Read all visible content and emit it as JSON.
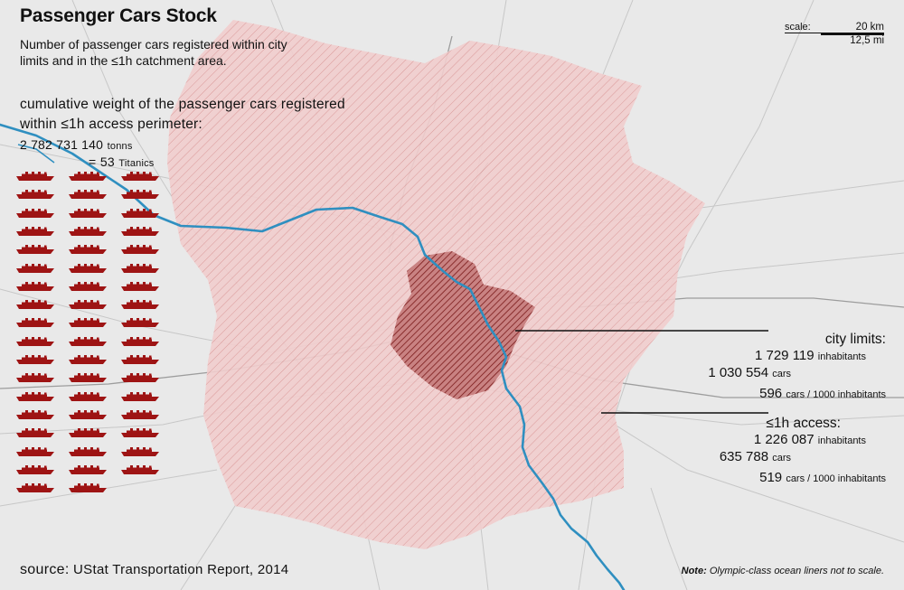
{
  "title": "Passenger Cars Stock",
  "subtitle": "Number of passenger cars registered within city limits and in the ≤1h catchment area.",
  "cumulative": {
    "heading": "cumulative weight of the passenger cars registered within ≤1h access perimeter:",
    "tons_value": "2 782 731 140",
    "tons_unit": "tonns",
    "equals": "=",
    "titanics_value": "53",
    "titanics_unit": "Titanics",
    "ship_count": 53
  },
  "scale": {
    "label": "scale:",
    "km": "20 km",
    "mi": "12,5 mi"
  },
  "city_limits": {
    "heading": "city  limits:",
    "inhabitants_value": "1 729 119",
    "inhabitants_unit": "inhabitants",
    "cars_value": "1 030 554",
    "cars_unit": "cars",
    "rate_value": "596",
    "rate_unit": "cars / 1000 inhabitants"
  },
  "access": {
    "heading": "≤1h access:",
    "inhabitants_value": "1 226 087",
    "inhabitants_unit": "inhabitants",
    "cars_value": "635 788",
    "cars_unit": "cars",
    "rate_value": "519",
    "rate_unit": "cars / 1000 inhabitants"
  },
  "source": {
    "label": "source:",
    "text": "UStat Transportation Report, 2014"
  },
  "note": {
    "label": "Note:",
    "text": "Olympic-class ocean liners not to scale."
  },
  "colors": {
    "background": "#e9e9e9",
    "catchment_fill": "#efc9c9",
    "catchment_hatch": "#d98f8f",
    "city_fill": "#b56565",
    "city_hatch": "#7a1a1a",
    "river": "#2f8fc0",
    "ship": "#9e1414"
  }
}
